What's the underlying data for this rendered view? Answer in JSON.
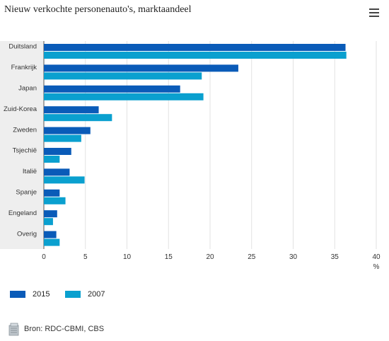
{
  "header": {
    "title": "Nieuw verkochte personenauto's, marktaandeel",
    "menu_icon": "hamburger-menu-icon"
  },
  "chart_data": {
    "type": "bar",
    "orientation": "horizontal",
    "title": "Nieuw verkochte personenauto's, marktaandeel",
    "xlabel": "%",
    "ylabel": "",
    "xlim": [
      0,
      40
    ],
    "xticks": [
      0,
      5,
      10,
      15,
      20,
      25,
      30,
      35,
      40
    ],
    "grid": true,
    "legend_placement": "bottom-left",
    "categories": [
      "Duitsland",
      "Frankrijk",
      "Japan",
      "Zuid-Korea",
      "Zweden",
      "Tsjechië",
      "Italië",
      "Spanje",
      "Engeland",
      "Overig"
    ],
    "series": [
      {
        "name": "2015",
        "color": "#0a5bb8",
        "values": [
          36.3,
          23.4,
          16.4,
          6.6,
          5.6,
          3.3,
          3.1,
          1.9,
          1.6,
          1.5
        ]
      },
      {
        "name": "2007",
        "color": "#0aa0cf",
        "values": [
          36.4,
          19.0,
          19.2,
          8.2,
          4.5,
          1.9,
          4.9,
          2.6,
          1.1,
          1.9
        ]
      }
    ]
  },
  "footer": {
    "source": "Bron: RDC-CBMI, CBS",
    "source_icon": "document-stack-icon"
  }
}
